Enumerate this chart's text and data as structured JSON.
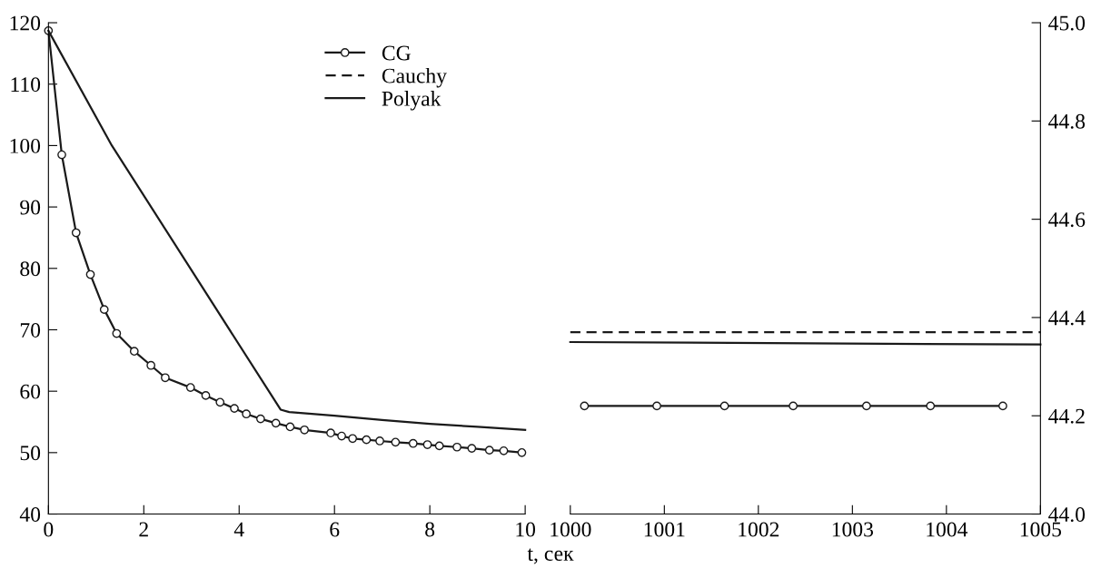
{
  "chart_data": [
    {
      "type": "line",
      "xlabel": "t, сек",
      "xlim": [
        0,
        10
      ],
      "xticks": [
        0,
        2,
        4,
        6,
        8,
        10
      ],
      "ylim": [
        40,
        120
      ],
      "yticks": [
        40,
        50,
        60,
        70,
        80,
        90,
        100,
        110,
        120
      ],
      "grid": false,
      "series": [
        {
          "color": "#1a1a1a",
          "marker": "circle",
          "line_style": "solid",
          "x": [
            0,
            0.28,
            0.58,
            0.88,
            1.17,
            1.43,
            1.8,
            2.15,
            2.45,
            2.98,
            3.3,
            3.6,
            3.9,
            4.15,
            4.45,
            4.77,
            5.07,
            5.37,
            5.92,
            6.15,
            6.38,
            6.67,
            6.95,
            7.28,
            7.65,
            7.95,
            8.2,
            8.57,
            8.88,
            9.25,
            9.55,
            9.93
          ],
          "values": [
            118.7,
            98.5,
            85.8,
            79,
            73.3,
            69.4,
            66.5,
            64.2,
            62.2,
            60.6,
            59.3,
            58.2,
            57.2,
            56.3,
            55.5,
            54.8,
            54.2,
            53.7,
            53.2,
            52.7,
            52.3,
            52.1,
            51.9,
            51.7,
            51.5,
            51.3,
            51.1,
            50.9,
            50.7,
            50.4,
            50.3,
            50.0
          ]
        },
        {
          "color": "#1a1a1a",
          "marker": "none",
          "line_style": "solid",
          "x": [
            0,
            1.33,
            4.87,
            5.05,
            6,
            7,
            8,
            9,
            10
          ],
          "values": [
            118.7,
            100,
            57,
            56.6,
            56,
            55.3,
            54.7,
            54.2,
            53.7
          ]
        }
      ]
    },
    {
      "type": "line",
      "xlim": [
        1000,
        1005
      ],
      "xticks": [
        1000,
        1001,
        1002,
        1003,
        1004,
        1005
      ],
      "ylim": [
        44.0,
        45.0
      ],
      "yticks": [
        {
          "value": 44.0,
          "label": "44.0"
        },
        44.2,
        44.4,
        44.6,
        44.8,
        {
          "value": 45.0,
          "label": "45.0"
        }
      ],
      "grid": false,
      "legend": "top left",
      "series": [
        {
          "name": "CG",
          "color": "#1a1a1a",
          "marker": "circle",
          "line_style": "solid",
          "x": [
            1000.15,
            1000.92,
            1001.64,
            1002.37,
            1003.15,
            1003.83,
            1004.6
          ],
          "values": [
            44.22,
            44.22,
            44.22,
            44.22,
            44.22,
            44.22,
            44.22
          ]
        },
        {
          "name": "Cauchy",
          "color": "#1a1a1a",
          "marker": "none",
          "line_style": "dashed",
          "x": [
            1000,
            1005
          ],
          "values": [
            44.37,
            44.37
          ]
        },
        {
          "name": "Polyak",
          "color": "#1a1a1a",
          "marker": "none",
          "line_style": "solid",
          "x": [
            1000,
            1005
          ],
          "values": [
            44.35,
            44.345
          ]
        }
      ]
    }
  ]
}
